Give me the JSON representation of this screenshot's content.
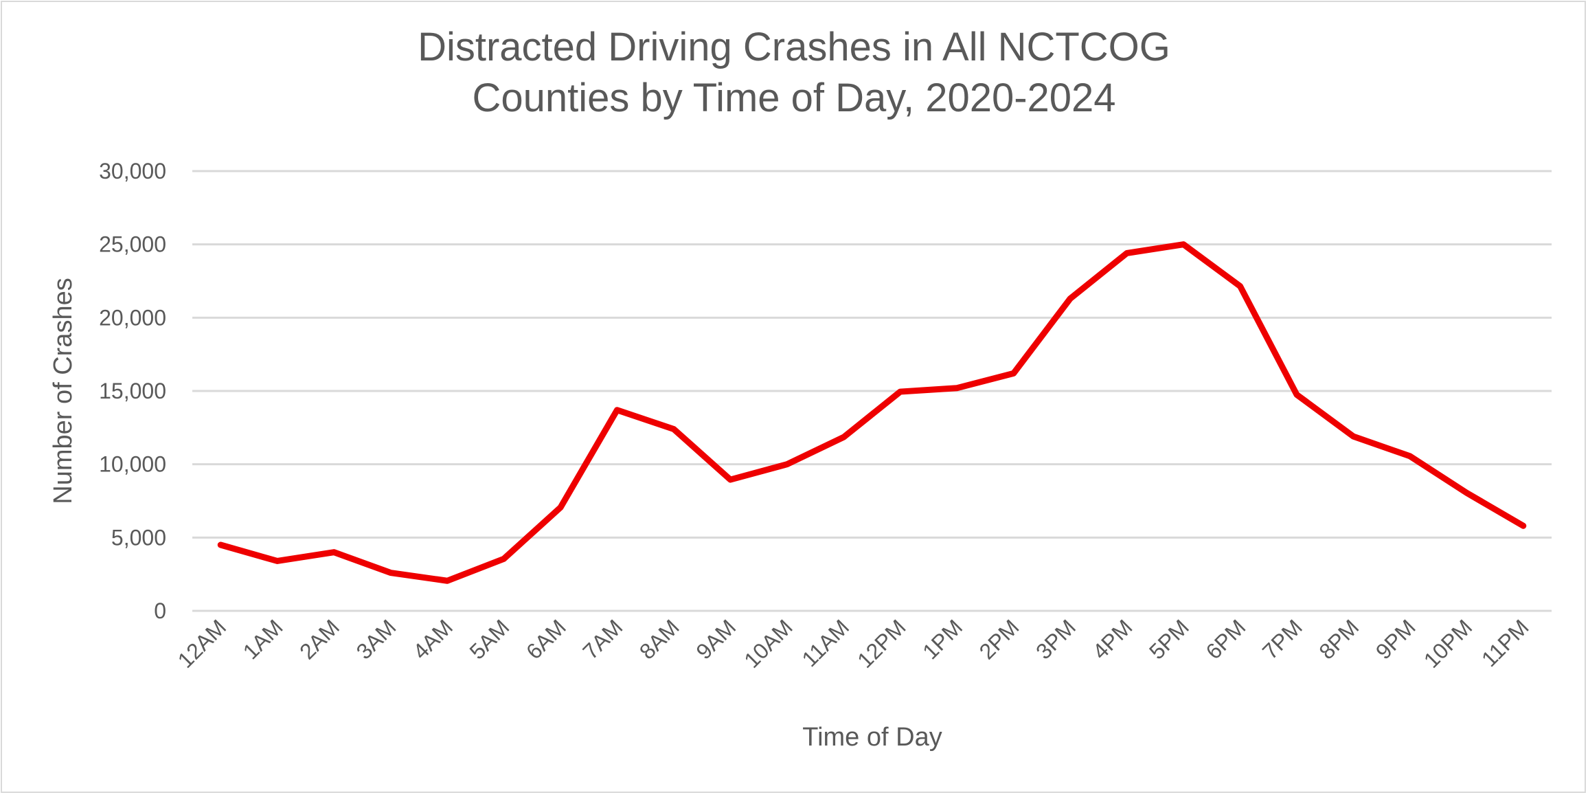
{
  "chart_data": {
    "type": "line",
    "title": [
      "Distracted Driving Crashes in All NCTCOG",
      "Counties by Time of Day, 2020-2024"
    ],
    "xlabel": "Time of Day",
    "ylabel": "Number of Crashes",
    "ylim": [
      0,
      30000
    ],
    "yticks": [
      0,
      5000,
      10000,
      15000,
      20000,
      25000,
      30000
    ],
    "ytick_labels": [
      "0",
      "5,000",
      "10,000",
      "15,000",
      "20,000",
      "25,000",
      "30,000"
    ],
    "grid": true,
    "legend": "none",
    "line_color": "#ee0000",
    "categories": [
      "12AM",
      "1AM",
      "2AM",
      "3AM",
      "4AM",
      "5AM",
      "6AM",
      "7AM",
      "8AM",
      "9AM",
      "10AM",
      "11AM",
      "12PM",
      "1PM",
      "2PM",
      "3PM",
      "4PM",
      "5PM",
      "6PM",
      "7PM",
      "8PM",
      "9PM",
      "10PM",
      "11PM"
    ],
    "values": [
      4500,
      3400,
      4000,
      2600,
      2050,
      3550,
      7050,
      13700,
      12400,
      8950,
      10000,
      11850,
      14950,
      15200,
      16200,
      21300,
      24400,
      25000,
      22150,
      14750,
      11900,
      10550,
      8050,
      5800
    ]
  }
}
